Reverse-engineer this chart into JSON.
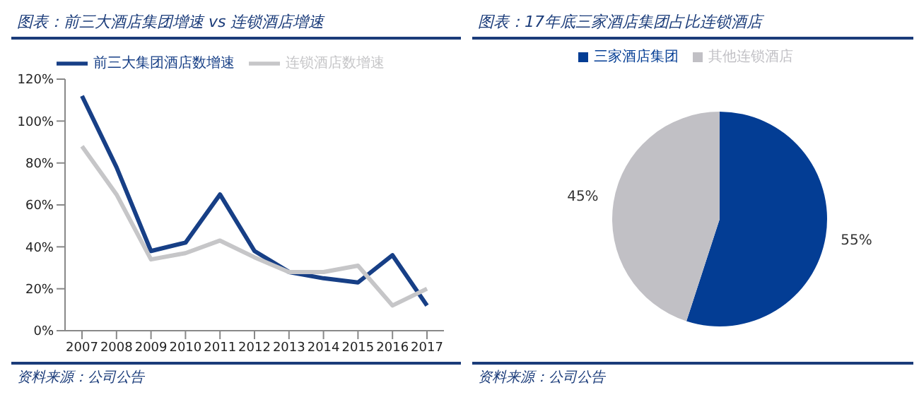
{
  "chart_data": [
    {
      "type": "line",
      "title": "图表：前三大酒店集团增速 vs 连锁酒店增速",
      "categories": [
        "2007",
        "2008",
        "2009",
        "2010",
        "2011",
        "2012",
        "2013",
        "2014",
        "2015",
        "2016",
        "2017"
      ],
      "series": [
        {
          "name": "前三大集团酒店数增速",
          "color": "#173f86",
          "values": [
            112,
            78,
            38,
            42,
            65,
            38,
            28,
            25,
            23,
            36,
            12
          ]
        },
        {
          "name": "连锁酒店数增速",
          "color": "#c6c6c8",
          "values": [
            88,
            65,
            34,
            37,
            43,
            35,
            28,
            28,
            31,
            12,
            20
          ]
        }
      ],
      "ylim": [
        0,
        120
      ],
      "yticks": [
        {
          "value": 0,
          "label": "0%"
        },
        {
          "value": 20,
          "label": "20%"
        },
        {
          "value": 40,
          "label": "40%"
        },
        {
          "value": 60,
          "label": "60%"
        },
        {
          "value": 80,
          "label": "80%"
        },
        {
          "value": 100,
          "label": "100%"
        },
        {
          "value": 120,
          "label": "120%"
        }
      ],
      "grid": false,
      "legend": "top",
      "marker": "none",
      "line_style": "solid",
      "annotations": [
        "资料来源：公司公告"
      ]
    },
    {
      "type": "pie",
      "title": "图表：17年底三家酒店集团占比连锁酒店",
      "categories": [
        "三家酒店集团",
        "其他连锁酒店"
      ],
      "values": [
        55,
        45
      ],
      "colors": [
        "#033d94",
        "#c1c0c5"
      ],
      "value_labels": [
        "55%",
        "45%"
      ],
      "legend": "top",
      "annotations": [
        "资料来源：公司公告"
      ]
    }
  ]
}
